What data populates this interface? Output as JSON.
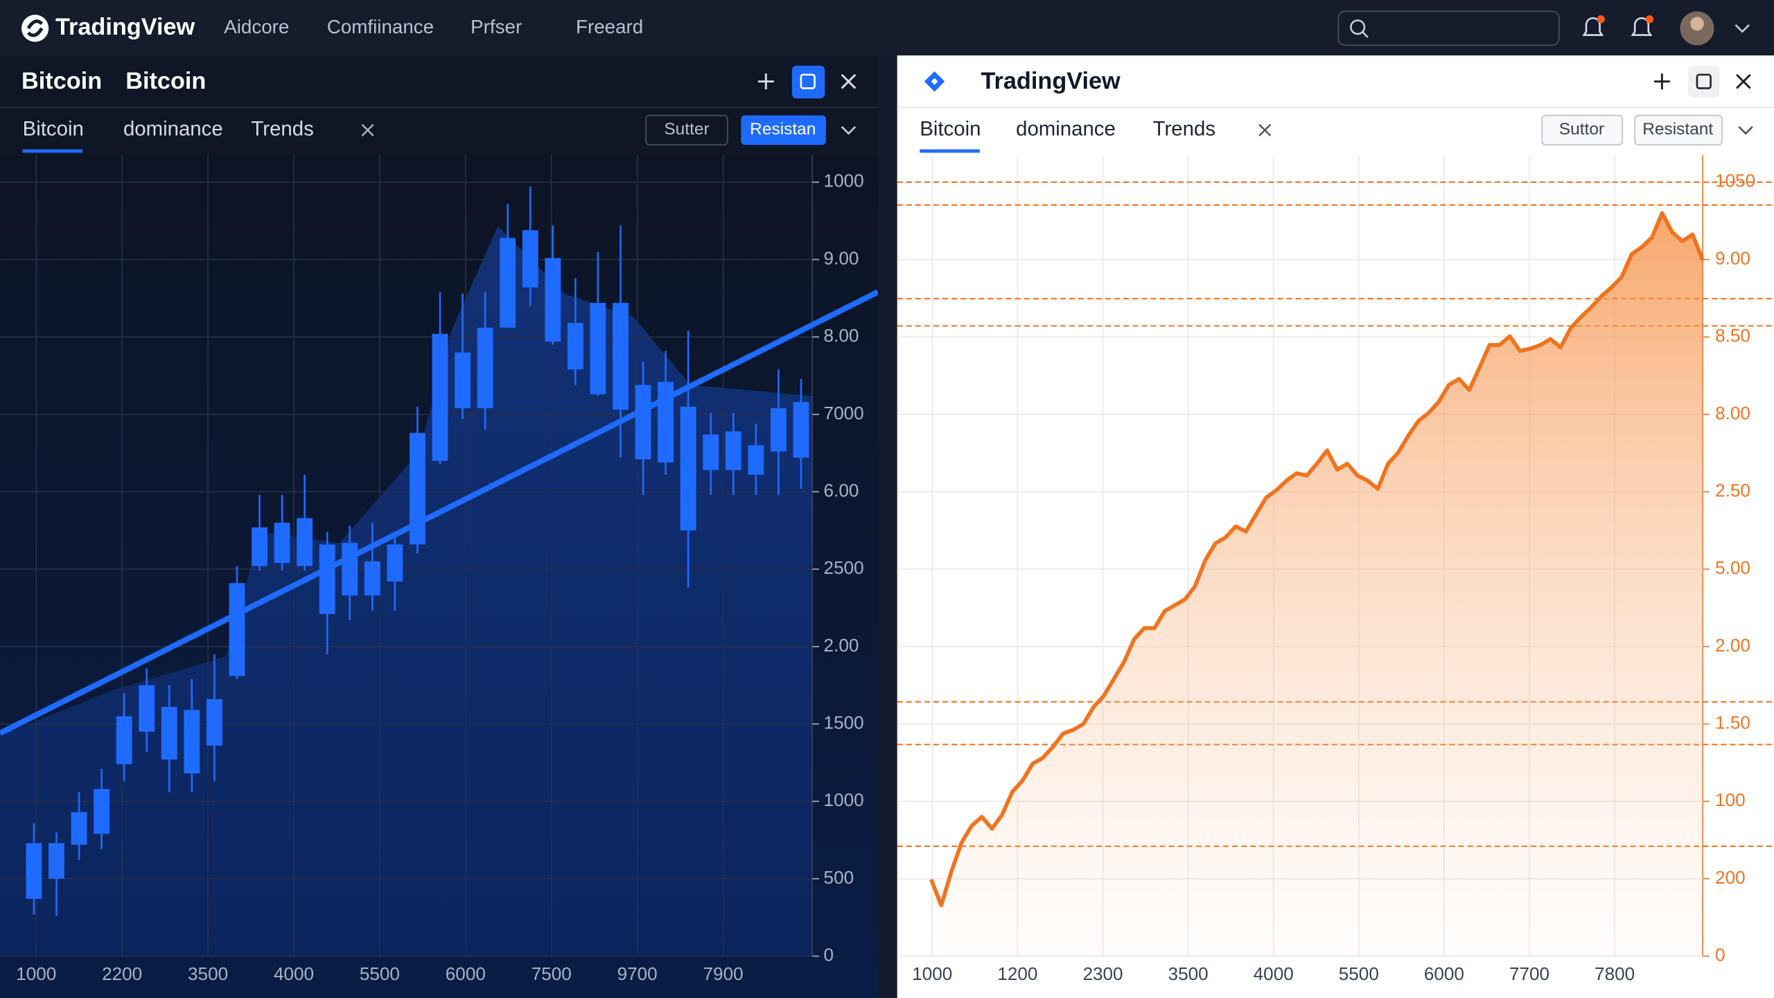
{
  "header": {
    "brand": "TradingView",
    "nav": [
      "Aidcore",
      "Comfiinance",
      "Prfser",
      "Freeard"
    ]
  },
  "panels": [
    {
      "title": [
        "Bitcoin",
        "Bitcoin"
      ],
      "tabs": [
        "Bitcoin",
        "dominance",
        "Trends"
      ],
      "buttons": [
        "Sutter",
        "Resistan"
      ]
    },
    {
      "title": [
        "TradingView"
      ],
      "tabs": [
        "Bitcoin",
        "dominance",
        "Trends"
      ],
      "buttons": [
        "Suttor",
        "Resistant"
      ]
    }
  ],
  "chart_data": [
    {
      "type": "candlestick",
      "color": "#1f6bff",
      "open": [
        370,
        500,
        720,
        790,
        1240,
        1450,
        1270,
        1180,
        1360,
        1810,
        2520,
        2540,
        2520,
        2210,
        2330,
        2330,
        2420,
        2660,
        3200,
        3540,
        3540,
        4060,
        4320,
        3970,
        3790,
        3630,
        3530,
        3210,
        3190,
        2750,
        3140,
        3140,
        3110,
        3260,
        3220
      ],
      "close": [
        730,
        730,
        930,
        1080,
        1550,
        1750,
        1610,
        1590,
        1660,
        2410,
        2770,
        2800,
        2830,
        2660,
        2670,
        2550,
        2660,
        3380,
        4020,
        3900,
        4060,
        4640,
        4690,
        4510,
        4090,
        4220,
        4220,
        3690,
        3710,
        3550,
        3370,
        3390,
        3300,
        3540,
        3580
      ],
      "high": [
        860,
        800,
        1060,
        1210,
        1700,
        1860,
        1750,
        1790,
        1950,
        2520,
        2980,
        2980,
        3110,
        2740,
        2780,
        2800,
        2740,
        3550,
        4290,
        4280,
        4290,
        4860,
        4970,
        4720,
        4380,
        4550,
        4720,
        3840,
        3910,
        4040,
        3510,
        3510,
        3440,
        3790,
        3730
      ],
      "low": [
        270,
        260,
        620,
        690,
        1130,
        1320,
        1060,
        1060,
        1130,
        1790,
        2490,
        2490,
        2490,
        1950,
        2170,
        2230,
        2230,
        2600,
        3180,
        3470,
        3400,
        4060,
        4200,
        3950,
        3690,
        3620,
        3220,
        2980,
        3110,
        2380,
        2980,
        2980,
        2980,
        2980,
        3020
      ],
      "xtick_labels": [
        "1000",
        "2200",
        "3500",
        "4000",
        "5500",
        "6000",
        "7500",
        "9700",
        "7900"
      ],
      "ylim": [
        0,
        5000
      ],
      "yticks": [
        0,
        500,
        1000,
        1500,
        {
          "value": 2000,
          "label": "2.00"
        },
        2500,
        {
          "value": 3000,
          "label": "6.00"
        },
        {
          "value": 3500,
          "label": "7000"
        },
        {
          "value": 4000,
          "label": "8.00"
        },
        {
          "value": 4500,
          "label": "9.00"
        },
        {
          "value": 5000,
          "label": "1000"
        }
      ],
      "grid": true
    },
    {
      "type": "line",
      "color": "#ef7420",
      "values": [
        104,
        69,
        115,
        154,
        177,
        189,
        173,
        192,
        223,
        238,
        261,
        269,
        284,
        302,
        307,
        315,
        338,
        353,
        376,
        399,
        430,
        445,
        445,
        468,
        476,
        484,
        502,
        537,
        560,
        568,
        583,
        576,
        599,
        622,
        632,
        645,
        655,
        652,
        668,
        686,
        660,
        668,
        652,
        645,
        634,
        668,
        683,
        706,
        726,
        737,
        752,
        775,
        783,
        768,
        798,
        829,
        829,
        841,
        821,
        824,
        829,
        837,
        826,
        852,
        867,
        880,
        895,
        907,
        921,
        952,
        962,
        975,
        1008,
        982,
        970,
        979,
        944
      ],
      "xtick_labels": [
        "1000",
        "1200",
        "2300",
        "3500",
        "4000",
        "5500",
        "6000",
        "7700",
        "7800"
      ],
      "ylim": [
        0,
        1050
      ],
      "yticks": [
        0,
        {
          "value": 105,
          "label": "200"
        },
        {
          "value": 210,
          "label": "100"
        },
        {
          "value": 315,
          "label": "1.50"
        },
        {
          "value": 420,
          "label": "2.00"
        },
        {
          "value": 525,
          "label": "5.00"
        },
        {
          "value": 630,
          "label": "2.50"
        },
        {
          "value": 735,
          "label": "8.00"
        },
        {
          "value": 840,
          "label": "8.50"
        },
        {
          "value": 945,
          "label": "9.00"
        },
        1050
      ],
      "levels": [
        1050,
        1019,
        892,
        855,
        345,
        287,
        149
      ],
      "grid": true
    }
  ]
}
